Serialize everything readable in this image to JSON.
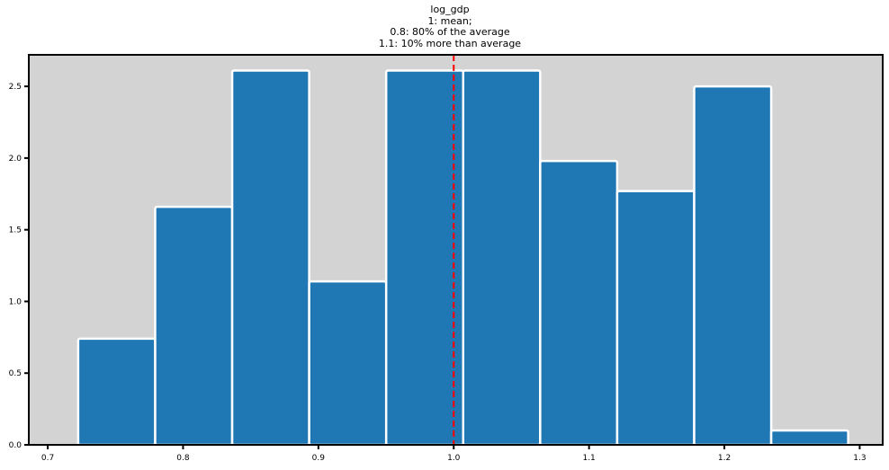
{
  "chart_data": {
    "type": "bar",
    "title_lines": [
      "log_gdp",
      "1: mean;",
      "0.8: 80% of the average",
      "1.1: 10% more than average"
    ],
    "xlabel": "",
    "ylabel": "",
    "bin_edges": [
      0.7225,
      0.7794,
      0.8363,
      0.8932,
      0.9501,
      1.007,
      1.0639,
      1.1208,
      1.1777,
      1.2346,
      1.2915
    ],
    "values": [
      0.74,
      1.66,
      2.61,
      1.14,
      2.61,
      2.61,
      1.98,
      1.77,
      2.5,
      0.1
    ],
    "mean_line_x": 1.0,
    "xlim": [
      0.686,
      1.317
    ],
    "ylim": [
      0,
      2.72
    ],
    "xticks": [
      "0.7",
      "0.8",
      "0.9",
      "1.0",
      "1.1",
      "1.2",
      "1.3"
    ],
    "yticks": [
      "0.0",
      "0.5",
      "1.0",
      "1.5",
      "2.0",
      "2.5"
    ],
    "grid": false,
    "legend": "none",
    "colors": {
      "bar": "#1f77b4",
      "bar_edge": "#ffffff",
      "axes_bg": "#d3d3d3",
      "mean_line": "#ff0000"
    }
  }
}
